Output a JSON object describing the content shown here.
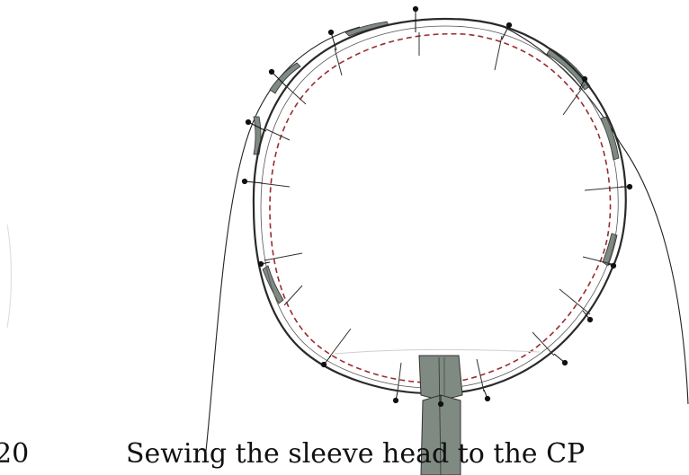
{
  "figure": {
    "caption_number": "20",
    "caption_text": "Sewing the sleeve head to the CP",
    "colors": {
      "seam_line": "#9a2b2f",
      "seam_allowance_fill": "#7f8a83",
      "outline": "#2a2a2a",
      "pin_head": "#111111",
      "background": "#ffffff"
    },
    "pin_count": 16,
    "icons": [
      "pin-icon"
    ]
  }
}
